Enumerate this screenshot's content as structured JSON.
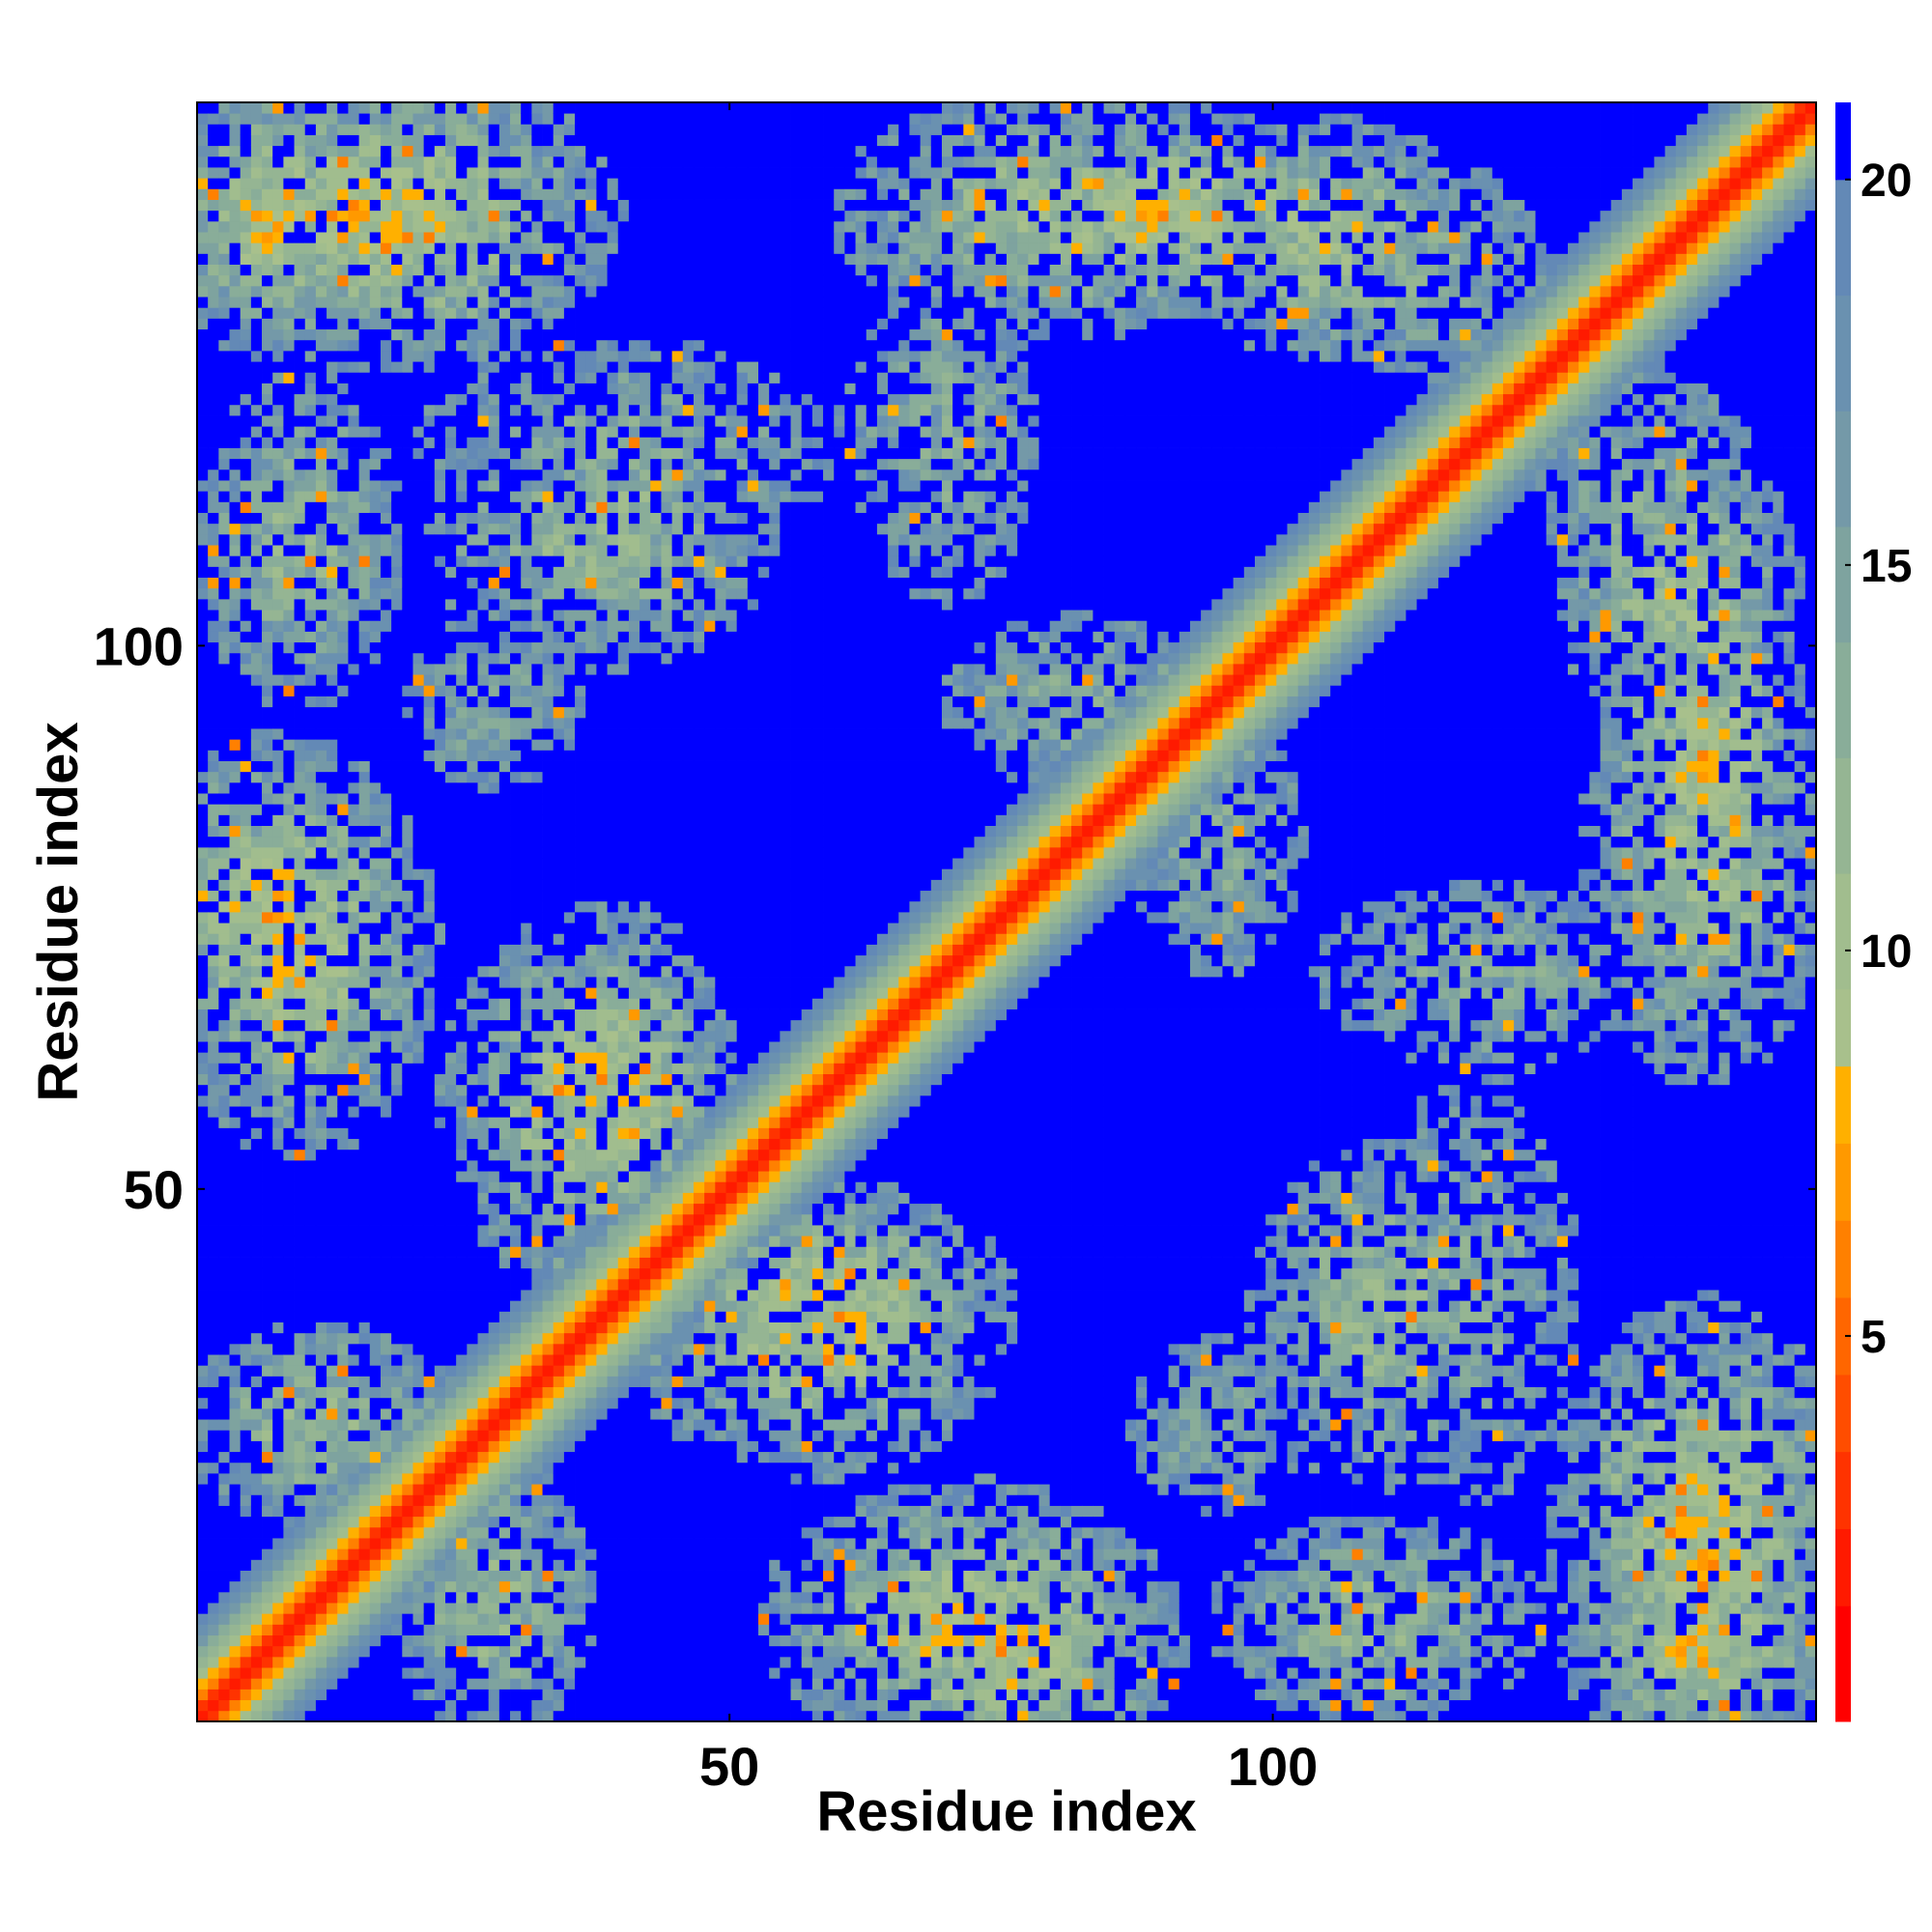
{
  "chart_data": {
    "type": "heatmap",
    "title": "",
    "xlabel": "Residue index",
    "ylabel": "Residue index",
    "n_residues": 150,
    "xlim": [
      1,
      150
    ],
    "ylim": [
      1,
      150
    ],
    "x_ticks": [
      50,
      100
    ],
    "y_ticks": [
      50,
      100
    ],
    "value_range": [
      0,
      21
    ],
    "colorbar": {
      "ticks": [
        5,
        10,
        15,
        20
      ],
      "levels": [
        {
          "max": 1.5,
          "color": "#ff0000"
        },
        {
          "max": 2.5,
          "color": "#ff1a00"
        },
        {
          "max": 3.5,
          "color": "#ff3300"
        },
        {
          "max": 4.5,
          "color": "#ff4d00"
        },
        {
          "max": 5.5,
          "color": "#ff6600"
        },
        {
          "max": 6.5,
          "color": "#ff8000"
        },
        {
          "max": 7.5,
          "color": "#ff9900"
        },
        {
          "max": 8.5,
          "color": "#ffb000"
        },
        {
          "max": 9.5,
          "color": "#a8c08c"
        },
        {
          "max": 11.0,
          "color": "#a1bd8e"
        },
        {
          "max": 12.5,
          "color": "#95b593"
        },
        {
          "max": 14.0,
          "color": "#89ad99"
        },
        {
          "max": 15.5,
          "color": "#7ea39f"
        },
        {
          "max": 17.0,
          "color": "#7499a8"
        },
        {
          "max": 18.5,
          "color": "#6a91b0"
        },
        {
          "max": 20.0,
          "color": "#6389b6"
        },
        {
          "max": 99,
          "color": "#0000ff"
        }
      ]
    },
    "contact_regions": [
      {
        "x": [
          1,
          18
        ],
        "y": [
          125,
          150
        ],
        "description": "upper-left off-diagonal patch"
      },
      {
        "x": [
          15,
          65
        ],
        "y": [
          100,
          130
        ],
        "description": "sparse upper-left patch"
      },
      {
        "x": [
          60,
          100
        ],
        "y": [
          125,
          150
        ],
        "description": "top-center patch"
      },
      {
        "x": [
          95,
          125
        ],
        "y": [
          130,
          150
        ],
        "description": "top-right arc along diagonal"
      },
      {
        "x": [
          120,
          150
        ],
        "y": [
          70,
          105
        ],
        "description": "right-side patch"
      },
      {
        "x": [
          1,
          15
        ],
        "y": [
          60,
          90
        ],
        "description": "left-side patch"
      },
      {
        "x": [
          25,
          50
        ],
        "y": [
          40,
          75
        ],
        "description": "central-left patch"
      },
      {
        "x": [
          45,
          75
        ],
        "y": [
          30,
          45
        ],
        "description": "lower-center patch"
      },
      {
        "x": [
          55,
          90
        ],
        "y": [
          1,
          25
        ],
        "description": "bottom-center patch"
      },
      {
        "x": [
          100,
          120
        ],
        "y": [
          25,
          55
        ],
        "description": "lower-right patch"
      },
      {
        "x": [
          125,
          150
        ],
        "y": [
          1,
          40
        ],
        "description": "bottom-right corner patch"
      },
      {
        "x": [
          85,
          150
        ],
        "y": [
          70,
          150
        ],
        "description": "helical band along diagonal"
      }
    ]
  }
}
